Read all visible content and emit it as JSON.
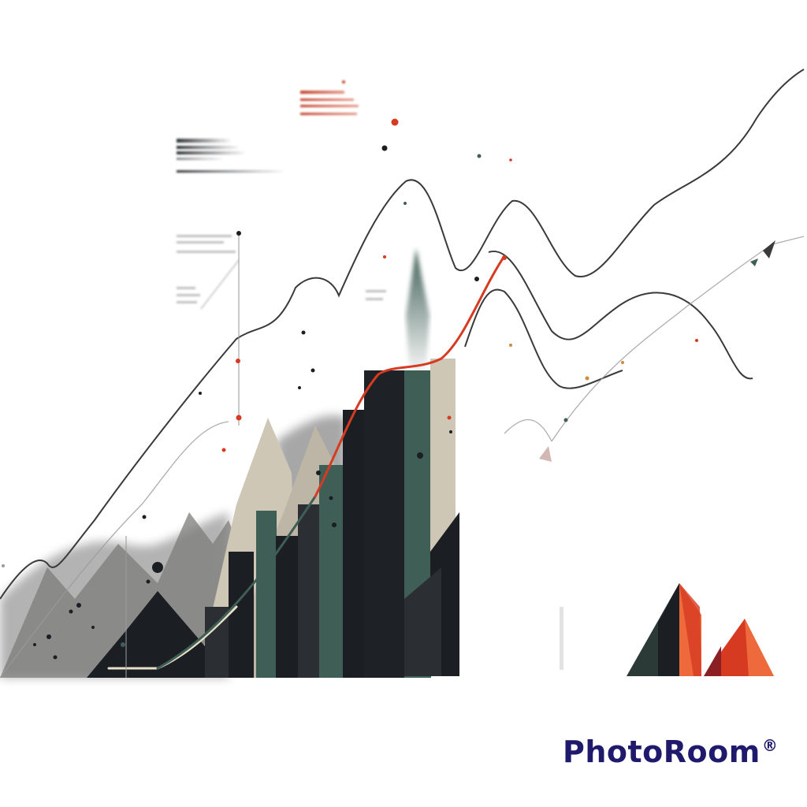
{
  "watermark": {
    "brand": "PhotoRoom",
    "mark": "®"
  },
  "colors": {
    "background": "#ffffff",
    "ink": "#1b1e22",
    "slate_green": "#3f5e55",
    "accent_red": "#d63b22",
    "accent_orange": "#ee6a3c",
    "beige": "#cfc7b6",
    "grey_mist": "#8d8d8d",
    "watermark": "#1f1a6b"
  }
}
